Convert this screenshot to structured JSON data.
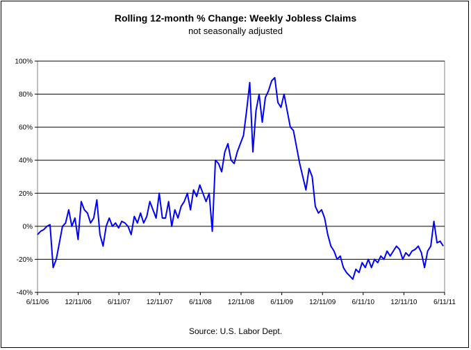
{
  "chart_data": {
    "type": "line",
    "title": "Rolling 12-month %  Change: Weekly Jobless Claims",
    "subtitle": "not seasonally adjusted",
    "source": "Source: U.S. Labor Dept.",
    "ylim": [
      -40,
      100
    ],
    "yticks": [
      100,
      80,
      60,
      40,
      20,
      0,
      -20,
      -40
    ],
    "yticklabels": [
      "100%",
      "80%",
      "60%",
      "40%",
      "20%",
      "0%",
      "-20%",
      "-40%"
    ],
    "xticklabels": [
      "6/11/06",
      "12/11/06",
      "6/11/07",
      "12/11/07",
      "6/11/08",
      "12/11/08",
      "6/11/09",
      "12/11/09",
      "6/11/10",
      "12/11/10",
      "6/11/11"
    ],
    "grid": "horizontal",
    "line_color": "#0000ff",
    "series": [
      {
        "x": [
          "2006-06-11",
          "2006-06-25",
          "2006-07-09",
          "2006-07-23",
          "2006-08-06",
          "2006-08-20",
          "2006-09-03",
          "2006-09-17",
          "2006-10-01",
          "2006-10-15",
          "2006-10-29",
          "2006-11-12",
          "2006-11-26",
          "2006-12-10",
          "2006-12-24",
          "2007-01-07",
          "2007-01-21",
          "2007-02-04",
          "2007-02-18",
          "2007-03-04",
          "2007-03-18",
          "2007-04-01",
          "2007-04-15",
          "2007-04-29",
          "2007-05-13",
          "2007-05-27",
          "2007-06-10",
          "2007-06-24",
          "2007-07-08",
          "2007-07-22",
          "2007-08-05",
          "2007-08-19",
          "2007-09-02",
          "2007-09-16",
          "2007-09-30",
          "2007-10-14",
          "2007-10-28",
          "2007-11-11",
          "2007-11-25",
          "2007-12-09",
          "2007-12-23",
          "2008-01-06",
          "2008-01-20",
          "2008-02-03",
          "2008-02-17",
          "2008-03-02",
          "2008-03-16",
          "2008-03-30",
          "2008-04-13",
          "2008-04-27",
          "2008-05-11",
          "2008-05-25",
          "2008-06-08",
          "2008-06-22",
          "2008-07-06",
          "2008-07-20",
          "2008-08-03",
          "2008-08-17",
          "2008-08-31",
          "2008-09-14",
          "2008-09-28",
          "2008-10-12",
          "2008-10-26",
          "2008-11-09",
          "2008-11-23",
          "2008-12-07",
          "2008-12-21",
          "2009-01-04",
          "2009-01-18",
          "2009-02-01",
          "2009-02-15",
          "2009-03-01",
          "2009-03-15",
          "2009-03-29",
          "2009-04-12",
          "2009-04-26",
          "2009-05-10",
          "2009-05-24",
          "2009-06-07",
          "2009-06-21",
          "2009-07-05",
          "2009-07-19",
          "2009-08-02",
          "2009-08-16",
          "2009-08-30",
          "2009-09-13",
          "2009-09-27",
          "2009-10-11",
          "2009-10-25",
          "2009-11-08",
          "2009-11-22",
          "2009-12-06",
          "2009-12-20",
          "2010-01-03",
          "2010-01-17",
          "2010-01-31",
          "2010-02-14",
          "2010-02-28",
          "2010-03-14",
          "2010-03-28",
          "2010-04-11",
          "2010-04-25",
          "2010-05-09",
          "2010-05-23",
          "2010-06-06",
          "2010-06-20",
          "2010-07-04",
          "2010-07-18",
          "2010-08-01",
          "2010-08-15",
          "2010-08-29",
          "2010-09-12",
          "2010-09-26",
          "2010-10-10",
          "2010-10-24",
          "2010-11-07",
          "2010-11-21",
          "2010-12-05",
          "2010-12-19",
          "2011-01-02",
          "2011-01-16",
          "2011-01-30",
          "2011-02-13",
          "2011-02-27",
          "2011-03-13",
          "2011-03-27",
          "2011-04-10",
          "2011-04-24",
          "2011-05-08",
          "2011-05-22",
          "2011-06-05"
        ],
        "values": [
          -5,
          -3,
          -2,
          0,
          1,
          -25,
          -20,
          -10,
          0,
          2,
          10,
          0,
          5,
          -8,
          15,
          10,
          8,
          2,
          5,
          16,
          -5,
          -12,
          0,
          5,
          0,
          2,
          -1,
          3,
          2,
          0,
          -5,
          6,
          2,
          8,
          2,
          6,
          15,
          10,
          5,
          20,
          5,
          5,
          15,
          0,
          10,
          5,
          12,
          15,
          20,
          10,
          22,
          18,
          25,
          20,
          15,
          20,
          -3,
          40,
          38,
          33,
          45,
          50,
          40,
          38,
          45,
          50,
          55,
          70,
          87,
          45,
          70,
          80,
          63,
          78,
          82,
          88,
          90,
          75,
          72,
          80,
          70,
          60,
          58,
          48,
          38,
          30,
          22,
          35,
          30,
          12,
          8,
          10,
          5,
          -5,
          -12,
          -15,
          -20,
          -18,
          -25,
          -28,
          -30,
          -32,
          -26,
          -28,
          -22,
          -25,
          -20,
          -25,
          -20,
          -22,
          -18,
          -20,
          -15,
          -18,
          -15,
          -12,
          -14,
          -20,
          -16,
          -18,
          -15,
          -14,
          -12,
          -16,
          -25,
          -15,
          -12,
          3,
          -10,
          -9,
          -12
        ]
      }
    ]
  }
}
